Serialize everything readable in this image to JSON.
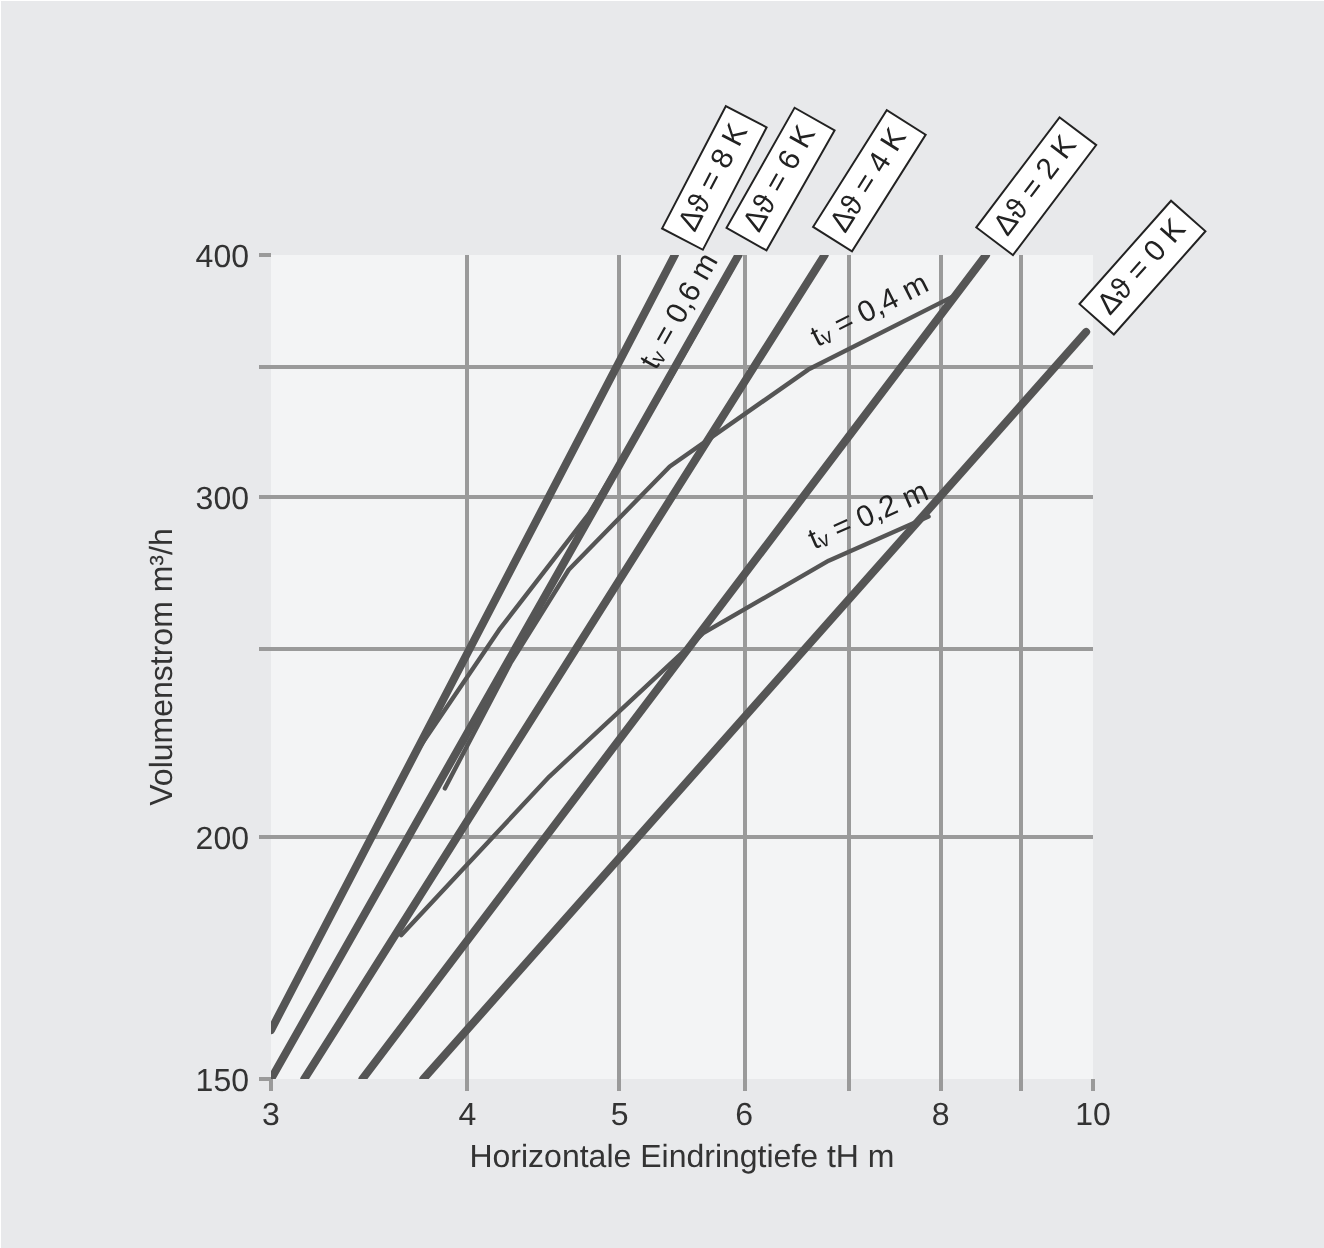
{
  "chart_data": {
    "type": "line",
    "xlabel": "Horizontale Eindringtiefe tH m",
    "ylabel": "Volumenstrom m³/h",
    "log": "xy",
    "grid": true,
    "xlim": [
      3,
      10
    ],
    "ylim": [
      150,
      400
    ],
    "xticks": [
      3,
      4,
      5,
      6,
      {
        "value": 7,
        "label": null
      },
      8,
      {
        "value": 9,
        "label": null
      },
      10
    ],
    "yticks": [
      150,
      200,
      {
        "value": 250,
        "label": null
      },
      300,
      {
        "value": 350,
        "label": null
      },
      400
    ],
    "series": [
      {
        "name": "Δϑ = 8 K",
        "color": "#555555",
        "x": [
          3,
          5.42
        ],
        "values": [
          159,
          400
        ]
      },
      {
        "name": "Δϑ = 6 K",
        "color": "#555555",
        "x": [
          3,
          5.95
        ],
        "values": [
          150,
          400
        ]
      },
      {
        "name": "Δϑ = 4 K",
        "color": "#555555",
        "x": [
          3.15,
          6.75
        ],
        "values": [
          150,
          400
        ]
      },
      {
        "name": "Δϑ = 2 K",
        "color": "#555555",
        "x": [
          3.43,
          8.55
        ],
        "values": [
          150,
          400
        ]
      },
      {
        "name": "Δϑ = 0 K",
        "color": "#555555",
        "x": [
          3.75,
          9.9
        ],
        "values": [
          150,
          365
        ]
      },
      {
        "color": "#555555",
        "x": [
          3.72,
          4.19,
          4.78,
          5.38,
          5.9
        ],
        "values": [
          222,
          256,
          294,
          345,
          394
        ]
      },
      {
        "color": "#555555",
        "x": [
          3.87,
          4.26,
          4.64,
          5.38,
          6.59,
          8.16
        ],
        "values": [
          212,
          246,
          275,
          311,
          349,
          381
        ]
      },
      {
        "color": "#555555",
        "x": [
          3.63,
          4.51,
          5.65,
          6.79,
          7.86
        ],
        "values": [
          178,
          215,
          255,
          278,
          293
        ]
      }
    ],
    "annotations": [
      "tᵥ = 0,6 m",
      "tᵥ = 0,4 m",
      "tᵥ = 0,2 m"
    ]
  }
}
